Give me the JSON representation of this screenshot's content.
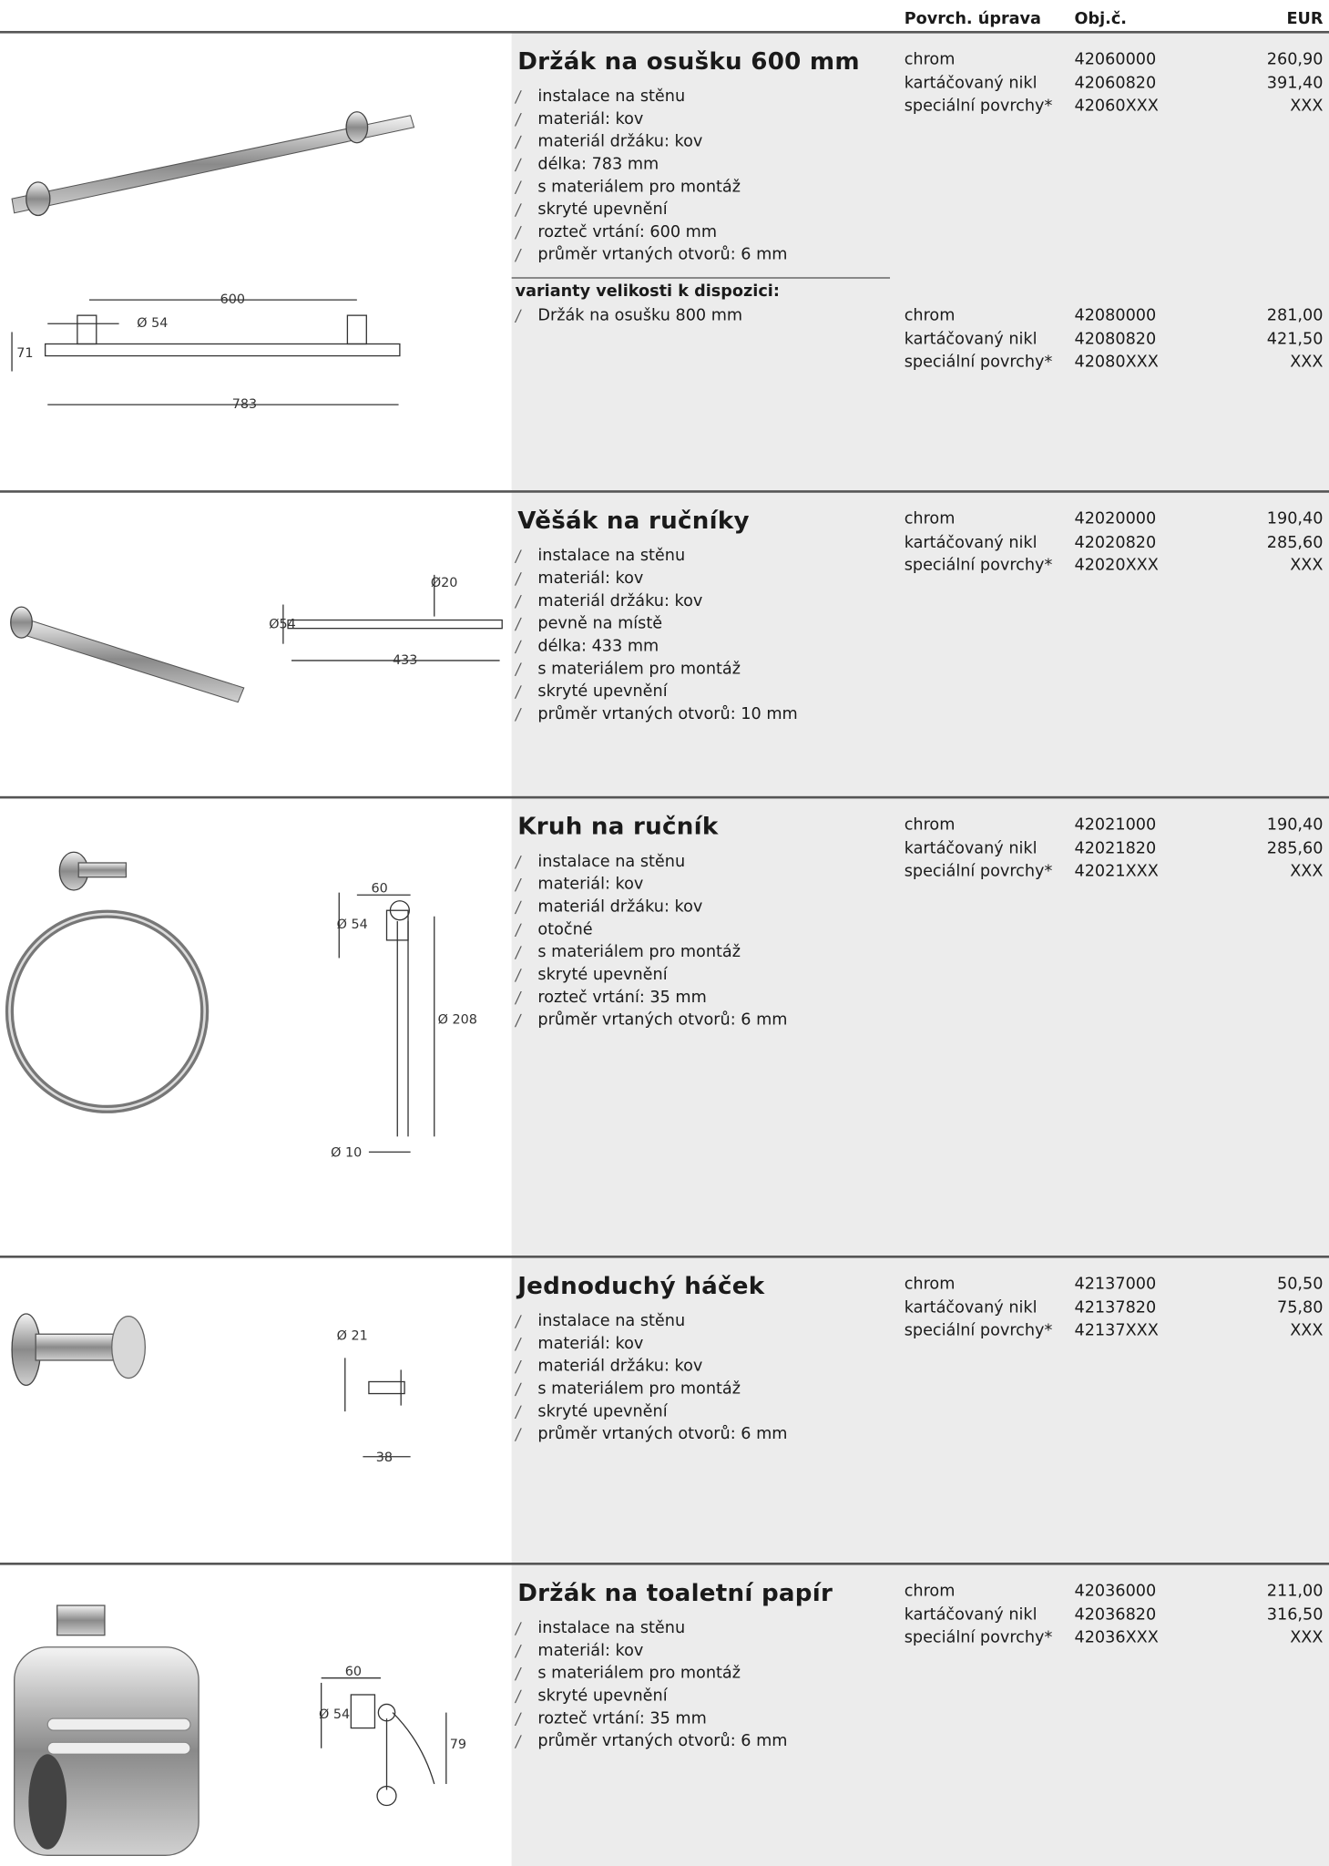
{
  "header": {
    "finish": "Povrch. úprava",
    "code": "Obj.č.",
    "price": "EUR"
  },
  "products": [
    {
      "title": "Držák na osušku 600 mm",
      "features": [
        "instalace na stěnu",
        "materiál: kov",
        "materiál držáku: kov",
        "délka: 783 mm",
        "s materiálem pro montáž",
        "skryté upevnění",
        "rozteč vrtání: 600 mm",
        "průměr vrtaných otvorů: 6 mm"
      ],
      "rows": [
        [
          "chrom",
          "42060000",
          "260,90"
        ],
        [
          "kartáčovaný nikl",
          "42060820",
          "391,40"
        ],
        [
          "speciální povrchy*",
          "42060XXX",
          "XXX"
        ]
      ],
      "variants_heading": "varianty velikosti k dispozici:",
      "variants": [
        {
          "name": "Držák na osušku 800 mm",
          "rows": [
            [
              "chrom",
              "42080000",
              "281,00"
            ],
            [
              "kartáčovaný nikl",
              "42080820",
              "421,50"
            ],
            [
              "speciální povrchy*",
              "42080XXX",
              "XXX"
            ]
          ]
        }
      ],
      "drawing_labels": [
        "600",
        "Ø 54",
        "71",
        "783"
      ]
    },
    {
      "title": "Věšák na ručníky",
      "features": [
        "instalace na stěnu",
        "materiál: kov",
        "materiál držáku: kov",
        "pevně na místě",
        "délka: 433 mm",
        "s materiálem pro montáž",
        "skryté upevnění",
        "průměr vrtaných otvorů: 10 mm"
      ],
      "rows": [
        [
          "chrom",
          "42020000",
          "190,40"
        ],
        [
          "kartáčovaný nikl",
          "42020820",
          "285,60"
        ],
        [
          "speciální povrchy*",
          "42020XXX",
          "XXX"
        ]
      ],
      "drawing_labels": [
        "Ø20",
        "Ø54",
        "433"
      ]
    },
    {
      "title": "Kruh na ručník",
      "features": [
        "instalace na stěnu",
        "materiál: kov",
        "materiál držáku: kov",
        "otočné",
        "s materiálem pro montáž",
        "skryté upevnění",
        "rozteč vrtání: 35 mm",
        "průměr vrtaných otvorů: 6 mm"
      ],
      "rows": [
        [
          "chrom",
          "42021000",
          "190,40"
        ],
        [
          "kartáčovaný nikl",
          "42021820",
          "285,60"
        ],
        [
          "speciální povrchy*",
          "42021XXX",
          "XXX"
        ]
      ],
      "drawing_labels": [
        "60",
        "Ø 54",
        "Ø 208",
        "Ø 10"
      ]
    },
    {
      "title": "Jednoduchý háček",
      "features": [
        "instalace na stěnu",
        "materiál: kov",
        "materiál držáku: kov",
        "s materiálem pro montáž",
        "skryté upevnění",
        "průměr vrtaných otvorů: 6 mm"
      ],
      "rows": [
        [
          "chrom",
          "42137000",
          "50,50"
        ],
        [
          "kartáčovaný nikl",
          "42137820",
          "75,80"
        ],
        [
          "speciální povrchy*",
          "42137XXX",
          "XXX"
        ]
      ],
      "drawing_labels": [
        "Ø 21",
        "38"
      ]
    },
    {
      "title": "Držák na toaletní papír",
      "features": [
        "instalace na stěnu",
        "materiál: kov",
        "s materiálem pro montáž",
        "skryté upevnění",
        "rozteč vrtání: 35 mm",
        "průměr vrtaných otvorů: 6 mm"
      ],
      "rows": [
        [
          "chrom",
          "42036000",
          "211,00"
        ],
        [
          "kartáčovaný nikl",
          "42036820",
          "316,50"
        ],
        [
          "speciální povrchy*",
          "42036XXX",
          "XXX"
        ]
      ],
      "drawing_labels": [
        "60",
        "Ø 54",
        "79"
      ]
    }
  ]
}
